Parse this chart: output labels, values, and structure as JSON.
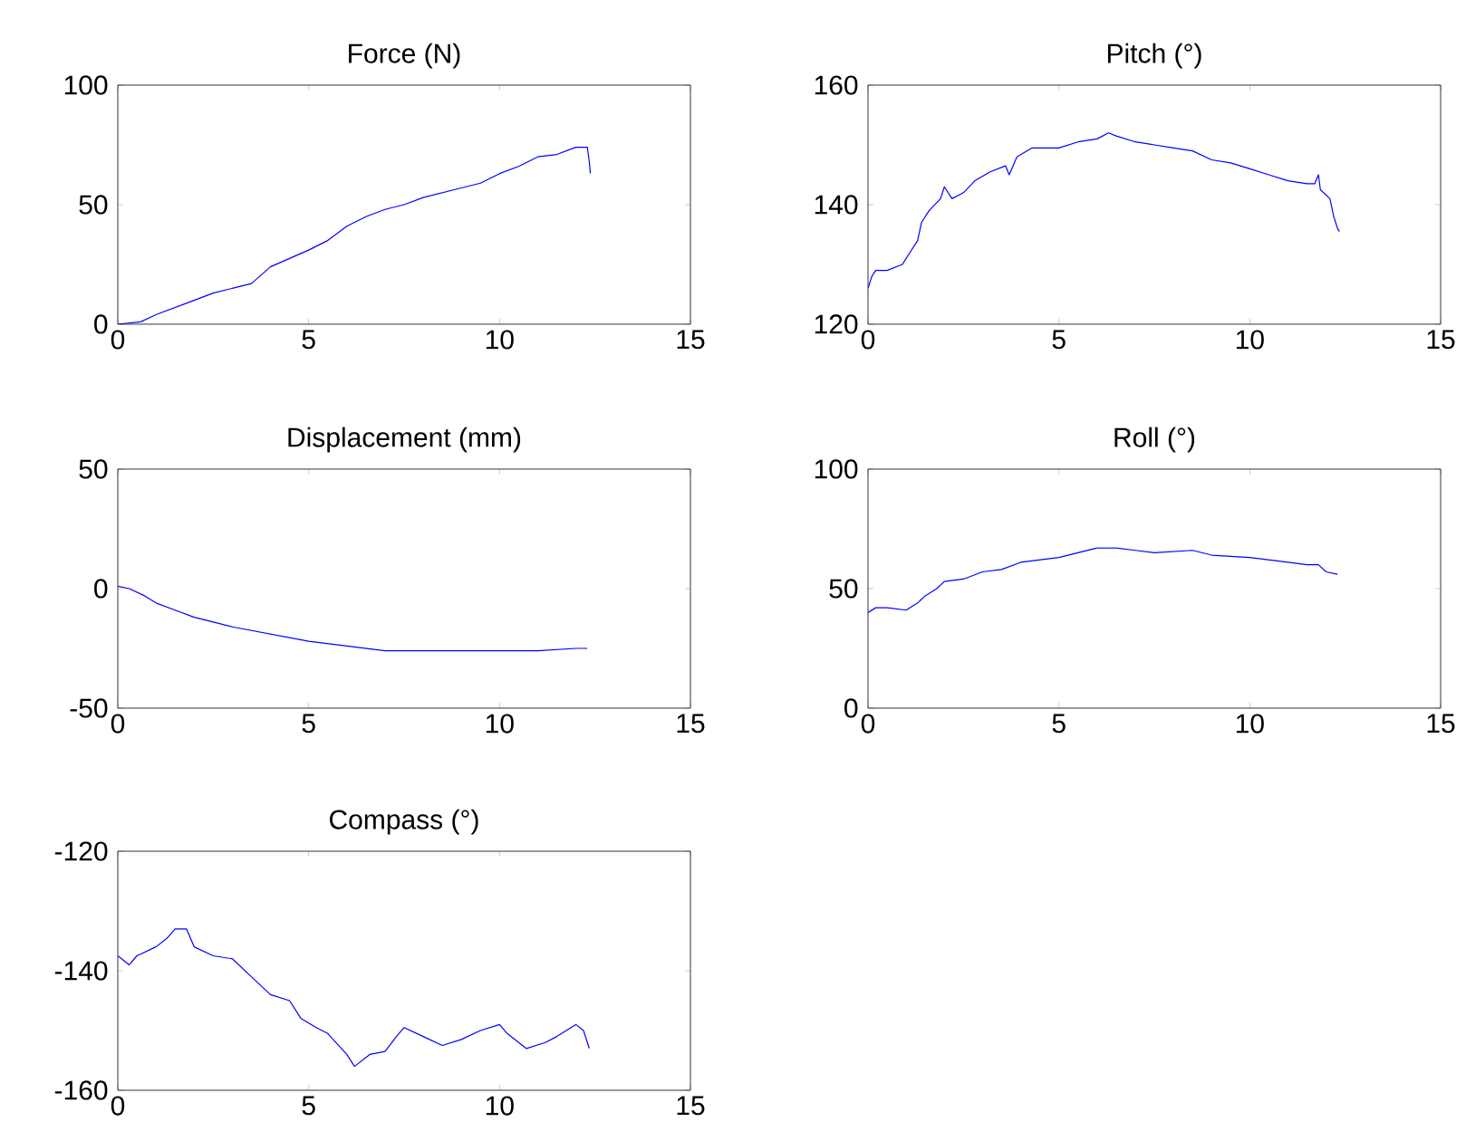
{
  "chart_data": [
    {
      "type": "line",
      "title": "Force (N)",
      "xlim": [
        0,
        15
      ],
      "xticks": [
        0,
        5,
        10,
        15
      ],
      "ylim": [
        0,
        100
      ],
      "yticks": [
        0,
        50,
        100
      ],
      "color": "#0000ff",
      "x": [
        0,
        0.6,
        1,
        2,
        2.5,
        3,
        3.5,
        4,
        5,
        5.5,
        6,
        6.5,
        7,
        7.5,
        8,
        9,
        9.5,
        10,
        10.5,
        11,
        11.5,
        12,
        12.3,
        12.35,
        12.38
      ],
      "values": [
        0,
        1,
        4,
        10,
        13,
        15,
        17,
        24,
        31,
        35,
        41,
        45,
        48,
        50,
        53,
        57,
        59,
        63,
        66,
        70,
        71,
        74,
        74,
        68,
        63
      ]
    },
    {
      "type": "line",
      "title": "Pitch (°)",
      "xlim": [
        0,
        15
      ],
      "xticks": [
        0,
        5,
        10,
        15
      ],
      "ylim": [
        120,
        160
      ],
      "yticks": [
        120,
        140,
        160
      ],
      "color": "#0000ff",
      "x": [
        0,
        0.1,
        0.2,
        0.5,
        0.9,
        1.0,
        1.1,
        1.3,
        1.4,
        1.6,
        1.9,
        2.0,
        2.2,
        2.5,
        2.8,
        3.2,
        3.6,
        3.7,
        3.9,
        4.3,
        5,
        5.5,
        6.0,
        6.3,
        6.5,
        7,
        7.5,
        8,
        8.5,
        9,
        9.5,
        10,
        10.5,
        11,
        11.5,
        11.7,
        11.8,
        11.85,
        12.1,
        12.2,
        12.3,
        12.35
      ],
      "values": [
        126,
        128,
        129,
        129,
        130,
        131,
        132,
        134,
        137,
        139,
        141,
        143,
        141,
        142,
        144,
        145.5,
        146.5,
        145,
        148,
        149.5,
        149.5,
        150.5,
        151,
        152,
        151.5,
        150.5,
        150,
        149.5,
        149,
        147.5,
        147,
        146,
        145,
        144,
        143.5,
        143.5,
        145,
        142.5,
        141,
        138,
        136,
        135.5
      ]
    },
    {
      "type": "line",
      "title": "Displacement (mm)",
      "xlim": [
        0,
        15
      ],
      "xticks": [
        0,
        5,
        10,
        15
      ],
      "ylim": [
        -50,
        50
      ],
      "yticks": [
        -50,
        0,
        50
      ],
      "color": "#0000ff",
      "x": [
        0,
        0.3,
        0.7,
        1,
        1.5,
        2,
        2.5,
        3,
        4,
        5,
        6,
        7,
        8,
        9,
        10,
        11,
        12,
        12.3
      ],
      "values": [
        1,
        0,
        -3,
        -6,
        -9,
        -12,
        -14,
        -16,
        -19,
        -22,
        -24,
        -26,
        -26,
        -26,
        -26,
        -26,
        -25,
        -25
      ]
    },
    {
      "type": "line",
      "title": "Roll (°)",
      "xlim": [
        0,
        15
      ],
      "xticks": [
        0,
        5,
        10,
        15
      ],
      "ylim": [
        0,
        100
      ],
      "yticks": [
        0,
        50,
        100
      ],
      "color": "#0000ff",
      "x": [
        0,
        0.2,
        0.5,
        1,
        1.3,
        1.5,
        1.8,
        2,
        2.5,
        3,
        3.5,
        4,
        5,
        5.5,
        6,
        6.5,
        7,
        7.5,
        8.5,
        9,
        10,
        11,
        11.5,
        11.8,
        12,
        12.3
      ],
      "values": [
        40,
        42,
        42,
        41,
        44,
        47,
        50,
        53,
        54,
        57,
        58,
        61,
        63,
        65,
        67,
        67,
        66,
        65,
        66,
        64,
        63,
        61,
        60,
        60,
        57,
        56
      ]
    },
    {
      "type": "line",
      "title": "Compass (°)",
      "xlim": [
        0,
        15
      ],
      "xticks": [
        0,
        5,
        10,
        15
      ],
      "ylim": [
        -160,
        -120
      ],
      "yticks": [
        -160,
        -140,
        -120
      ],
      "color": "#0000ff",
      "x": [
        0,
        0.3,
        0.5,
        1,
        1.3,
        1.5,
        1.8,
        2,
        2.5,
        3,
        3.5,
        4,
        4.5,
        4.8,
        5.2,
        5.5,
        6,
        6.2,
        6.6,
        7,
        7.3,
        7.5,
        8,
        8.5,
        9,
        9.5,
        10,
        10.2,
        10.7,
        11.2,
        11.5,
        12,
        12.2,
        12.35
      ],
      "values": [
        -137.5,
        -139,
        -137.5,
        -136,
        -134.5,
        -133,
        -133,
        -136,
        -137.5,
        -138,
        -141,
        -144,
        -145,
        -148,
        -149.5,
        -150.5,
        -154,
        -156,
        -154,
        -153.5,
        -151,
        -149.5,
        -151,
        -152.5,
        -151.5,
        -150,
        -149,
        -150.5,
        -153,
        -152,
        -151,
        -149,
        -150,
        -153
      ]
    }
  ]
}
